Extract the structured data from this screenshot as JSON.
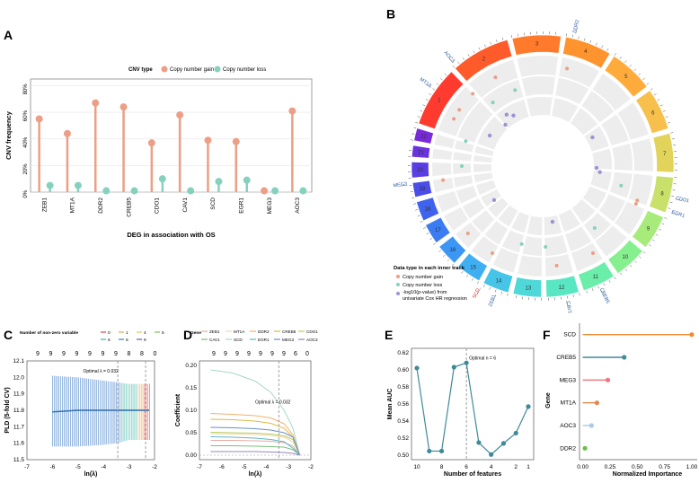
{
  "panel_labels": {
    "a": "A",
    "b": "B",
    "c": "C",
    "d": "D",
    "e": "E",
    "f": "F"
  },
  "colors": {
    "gain": "#EC9F86",
    "loss": "#86D1BE",
    "lasso_line": "#2E6FA8",
    "auc_line": "#3E8A97"
  },
  "chart_data": [
    {
      "id": "A",
      "type": "lollipop",
      "legend_title": "CNV type",
      "series_names": [
        "Copy number gain",
        "Copy number loss"
      ],
      "categories": [
        "ZEB1",
        "MT1A",
        "DDR2",
        "CREB5",
        "CDO1",
        "CAV1",
        "SCD",
        "EGR1",
        "MEG3",
        "AOC3"
      ],
      "series": [
        {
          "name": "Copy number gain",
          "values": [
            55,
            44,
            67,
            64,
            37,
            58,
            39,
            38,
            1,
            61
          ]
        },
        {
          "name": "Copy number loss",
          "values": [
            5,
            5,
            1,
            1,
            10,
            1,
            8,
            9,
            1,
            1
          ]
        }
      ],
      "yticks": [
        "0%",
        "20%",
        "40%",
        "60%",
        "80%"
      ],
      "ylim": [
        0,
        85
      ],
      "xlabel": "DEG in association with OS",
      "ylabel": "CNV frequency"
    },
    {
      "id": "B",
      "type": "circos",
      "chromosomes": [
        "1",
        "2",
        "3",
        "4",
        "5",
        "6",
        "7",
        "8",
        "9",
        "10",
        "11",
        "12",
        "13",
        "14",
        "15",
        "16",
        "17",
        "18",
        "19",
        "20",
        "21",
        "22"
      ],
      "gene_labels": [
        "CDO1",
        "EGR1",
        "CAV1",
        "CREB5",
        "SCD",
        "ZEB1",
        "MEG3",
        "MT1A",
        "AOC3",
        "DDR2"
      ],
      "legend_title": "Data type in each inner track",
      "legend_items": [
        "Copy number gain",
        "Copy number loss",
        "-log10(p-value) from",
        "univariate Cox HR regression"
      ]
    },
    {
      "id": "C",
      "type": "errorbar",
      "legend_title": "Number of non-zero variable",
      "legend_values": [
        "0",
        "1",
        "4",
        "5",
        "6",
        "8",
        "9"
      ],
      "top_counts": [
        "9",
        "9",
        "9",
        "9",
        "9",
        "9",
        "9",
        "8",
        "8",
        "0"
      ],
      "annotation": "Optimal λ = 0.032",
      "xticks": [
        "-7",
        "-6",
        "-5",
        "-4",
        "-3",
        "-2"
      ],
      "xlim": [
        -7,
        -2
      ],
      "yticks": [
        "11.5",
        "11.6",
        "11.7",
        "11.8",
        "11.9",
        "12.0",
        "12.1"
      ],
      "ylim": [
        11.5,
        12.1
      ],
      "xlabel": "ln(λ)",
      "ylabel": "PLD (5-fold CV)",
      "optimal_log_lambda": -3.44,
      "min_log_lambda": -2.35,
      "bars": [
        {
          "x": -6.0,
          "y": 11.79,
          "lo": 11.58,
          "hi": 12.01
        },
        {
          "x": -5.0,
          "y": 11.8,
          "lo": 11.58,
          "hi": 12.0
        },
        {
          "x": -4.0,
          "y": 11.8,
          "lo": 11.59,
          "hi": 11.98
        },
        {
          "x": -3.44,
          "y": 11.8,
          "lo": 11.6,
          "hi": 11.97
        },
        {
          "x": -3.0,
          "y": 11.8,
          "lo": 11.62,
          "hi": 11.96
        },
        {
          "x": -2.5,
          "y": 11.8,
          "lo": 11.62,
          "hi": 11.96
        },
        {
          "x": -2.2,
          "y": 11.8,
          "lo": 11.62,
          "hi": 11.96
        }
      ]
    },
    {
      "id": "D",
      "type": "line",
      "legend_title": "Gene",
      "top_counts": [
        "9",
        "9",
        "9",
        "9",
        "9",
        "9",
        "9",
        "6",
        "0"
      ],
      "annotation": "Optimal λ = 0.032",
      "xticks": [
        "-7",
        "-6",
        "-5",
        "-4",
        "-3",
        "-2"
      ],
      "xlim": [
        -7,
        -2
      ],
      "yticks": [
        "0.00",
        "0.05",
        "0.10",
        "0.15",
        "0.20"
      ],
      "ylim": [
        -0.01,
        0.21
      ],
      "xlabel": "ln(λ)",
      "ylabel": "Coefficient",
      "optimal_log_lambda": -3.44,
      "x": [
        -6.5,
        -5.5,
        -4.5,
        -3.8,
        -3.2,
        -2.8,
        -2.5
      ],
      "series": [
        {
          "name": "ZEB1",
          "color": "#E5A9A1",
          "values": [
            0.033,
            0.033,
            0.032,
            0.031,
            0.028,
            0.02,
            0.0
          ]
        },
        {
          "name": "MT1A",
          "color": "#F5D6A8",
          "values": [
            0.048,
            0.047,
            0.046,
            0.044,
            0.04,
            0.03,
            0.0
          ]
        },
        {
          "name": "DDR2",
          "color": "#F2B06B",
          "values": [
            0.093,
            0.091,
            0.088,
            0.083,
            0.07,
            0.045,
            0.0
          ]
        },
        {
          "name": "CREB5",
          "color": "#E0B84A",
          "values": [
            0.08,
            0.079,
            0.076,
            0.071,
            0.06,
            0.04,
            0.0
          ]
        },
        {
          "name": "CDO1",
          "color": "#B7CD62",
          "values": [
            0.051,
            0.05,
            0.049,
            0.047,
            0.043,
            0.035,
            0.0
          ]
        },
        {
          "name": "CAV1",
          "color": "#7CBF7C",
          "values": [
            0.021,
            0.021,
            0.02,
            0.019,
            0.018,
            0.012,
            0.0
          ]
        },
        {
          "name": "SCD",
          "color": "#A6D7C8",
          "values": [
            0.19,
            0.183,
            0.165,
            0.14,
            0.1,
            0.06,
            0.0
          ]
        },
        {
          "name": "EGR1",
          "color": "#5CB8C6",
          "values": [
            0.041,
            0.04,
            0.038,
            0.035,
            0.03,
            0.015,
            0.0
          ]
        },
        {
          "name": "MEG3",
          "color": "#6B8FC7",
          "values": [
            0.062,
            0.061,
            0.059,
            0.056,
            0.05,
            0.04,
            0.0
          ]
        },
        {
          "name": "AOC3",
          "color": "#9B84C2",
          "values": [
            0.008,
            0.008,
            0.008,
            0.007,
            0.006,
            0.004,
            0.0
          ]
        }
      ]
    },
    {
      "id": "E",
      "type": "line",
      "annotation": "Optimal n = 6",
      "categories": [
        "10",
        "9",
        "8",
        "7",
        "6",
        "5",
        "4",
        "3",
        "2",
        "1"
      ],
      "values": [
        0.602,
        0.505,
        0.505,
        0.603,
        0.608,
        0.515,
        0.501,
        0.514,
        0.526,
        0.557
      ],
      "optimal": "6",
      "xticks": [
        "10",
        "8",
        "6",
        "4",
        "2",
        "1"
      ],
      "yticks": [
        "0.50",
        "0.52",
        "0.54",
        "0.56",
        "0.58",
        "0.60",
        "0.62"
      ],
      "ylim": [
        0.495,
        0.625
      ],
      "xlabel": "Number of features",
      "ylabel": "Mean AUC"
    },
    {
      "id": "F",
      "type": "lollipop",
      "categories": [
        "SCD",
        "CREB5",
        "MEG3",
        "MT1A",
        "AOC3",
        "DDR2"
      ],
      "values": [
        1.0,
        0.38,
        0.23,
        0.13,
        0.08,
        0.02
      ],
      "colors": [
        "#F08A33",
        "#3E8A97",
        "#F2737E",
        "#E0894E",
        "#A8CBEA",
        "#6BBF4C"
      ],
      "xticks": [
        "0.00",
        "0.25",
        "0.50",
        "0.75",
        "1.00"
      ],
      "xlim": [
        -0.03,
        1.05
      ],
      "xlabel": "Normalized Importance",
      "ylabel": "Gene"
    }
  ]
}
